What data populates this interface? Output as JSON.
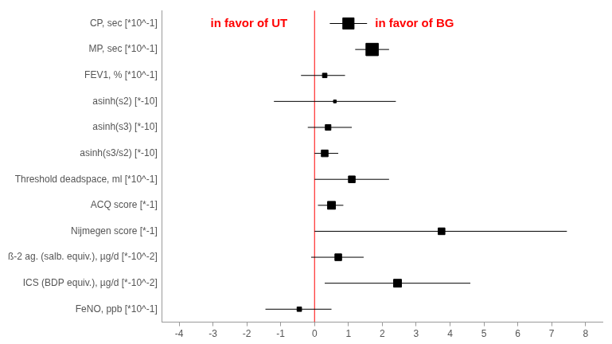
{
  "chart_data": {
    "type": "forest",
    "orientation": "horizontal",
    "categories": [
      "CP, sec [*10^-1]",
      "MP, sec [*10^-1]",
      "FEV1, % [*10^-1]",
      "asinh(s2) [*-10]",
      "asinh(s3) [*-10]",
      "asinh(s3/s2) [*-10]",
      "Threshold deadspace, ml [*10^-1]",
      "ACQ score [*-1]",
      "Nijmegen score [*-1]",
      "ß-2 ag. (salb. equiv.), µg/d [*-10^-2]",
      "ICS (BDP equiv.), µg/d [*-10^-2]",
      "FeNO, ppb [*10^-1]"
    ],
    "values": [
      1.0,
      1.7,
      0.3,
      0.6,
      0.4,
      0.3,
      1.1,
      0.5,
      3.75,
      0.7,
      2.45,
      -0.45
    ],
    "ci_lower": [
      0.45,
      1.2,
      -0.4,
      -1.2,
      -0.2,
      0.0,
      0.0,
      0.1,
      0.0,
      -0.1,
      0.3,
      -1.45
    ],
    "ci_upper": [
      1.55,
      2.2,
      0.9,
      2.4,
      1.1,
      0.7,
      2.2,
      0.85,
      7.45,
      1.45,
      4.6,
      0.5
    ],
    "weights": [
      10,
      11,
      4,
      2.5,
      5,
      6,
      6,
      7,
      6,
      6,
      7,
      4
    ],
    "color": "#000000",
    "marker": "square",
    "xlim": [
      -4.5,
      8.5
    ],
    "xticks": [
      -4,
      -3,
      -2,
      -1,
      0,
      1,
      2,
      3,
      4,
      5,
      6,
      7,
      8
    ],
    "grid": false,
    "reference_line": {
      "value": 0,
      "color": "#ff0000"
    },
    "annotations": [
      {
        "text": "in favor of UT",
        "color": "#ff0000",
        "side": "left"
      },
      {
        "text": "in favor of BG",
        "color": "#ff0000",
        "side": "right"
      }
    ]
  }
}
